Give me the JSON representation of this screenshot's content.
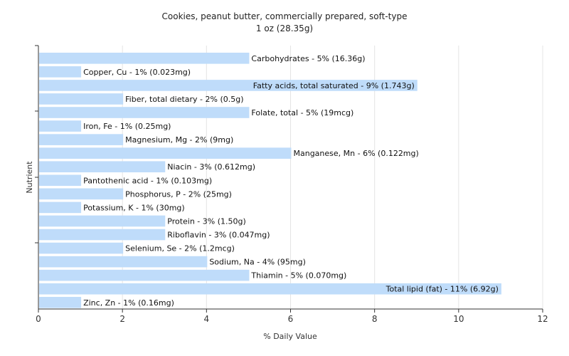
{
  "chart_data": {
    "type": "bar",
    "orientation": "horizontal",
    "title": "Cookies, peanut butter, commercially prepared, soft-type",
    "subtitle": "1 oz (28.35g)",
    "xlabel": "% Daily Value",
    "ylabel": "Nutrient",
    "xlim": [
      0,
      12
    ],
    "xticks": [
      "0",
      "2",
      "4",
      "6",
      "8",
      "10",
      "12"
    ],
    "grid": true,
    "bar_color": "#bfdcfa",
    "categories": [
      "Carbohydrates",
      "Copper, Cu",
      "Fatty acids, total saturated",
      "Fiber, total dietary",
      "Folate, total",
      "Iron, Fe",
      "Magnesium, Mg",
      "Manganese, Mn",
      "Niacin",
      "Pantothenic acid",
      "Phosphorus, P",
      "Potassium, K",
      "Protein",
      "Riboflavin",
      "Selenium, Se",
      "Sodium, Na",
      "Thiamin",
      "Total lipid (fat)",
      "Zinc, Zn"
    ],
    "values": [
      5,
      1,
      9,
      2,
      5,
      1,
      2,
      6,
      3,
      1,
      2,
      1,
      3,
      3,
      2,
      4,
      5,
      11,
      1
    ],
    "labels": [
      "Carbohydrates - 5% (16.36g)",
      "Copper, Cu - 1% (0.023mg)",
      "Fatty acids, total saturated - 9% (1.743g)",
      "Fiber, total dietary - 2% (0.5g)",
      "Folate, total - 5% (19mcg)",
      "Iron, Fe - 1% (0.25mg)",
      "Magnesium, Mg - 2% (9mg)",
      "Manganese, Mn - 6% (0.122mg)",
      "Niacin - 3% (0.612mg)",
      "Pantothenic acid - 1% (0.103mg)",
      "Phosphorus, P - 2% (25mg)",
      "Potassium, K - 1% (30mg)",
      "Protein - 3% (1.50g)",
      "Riboflavin - 3% (0.047mg)",
      "Selenium, Se - 2% (1.2mcg)",
      "Sodium, Na - 4% (95mg)",
      "Thiamin - 5% (0.070mg)",
      "Total lipid (fat) - 11% (6.92g)",
      "Zinc, Zn - 1% (0.16mg)"
    ]
  }
}
